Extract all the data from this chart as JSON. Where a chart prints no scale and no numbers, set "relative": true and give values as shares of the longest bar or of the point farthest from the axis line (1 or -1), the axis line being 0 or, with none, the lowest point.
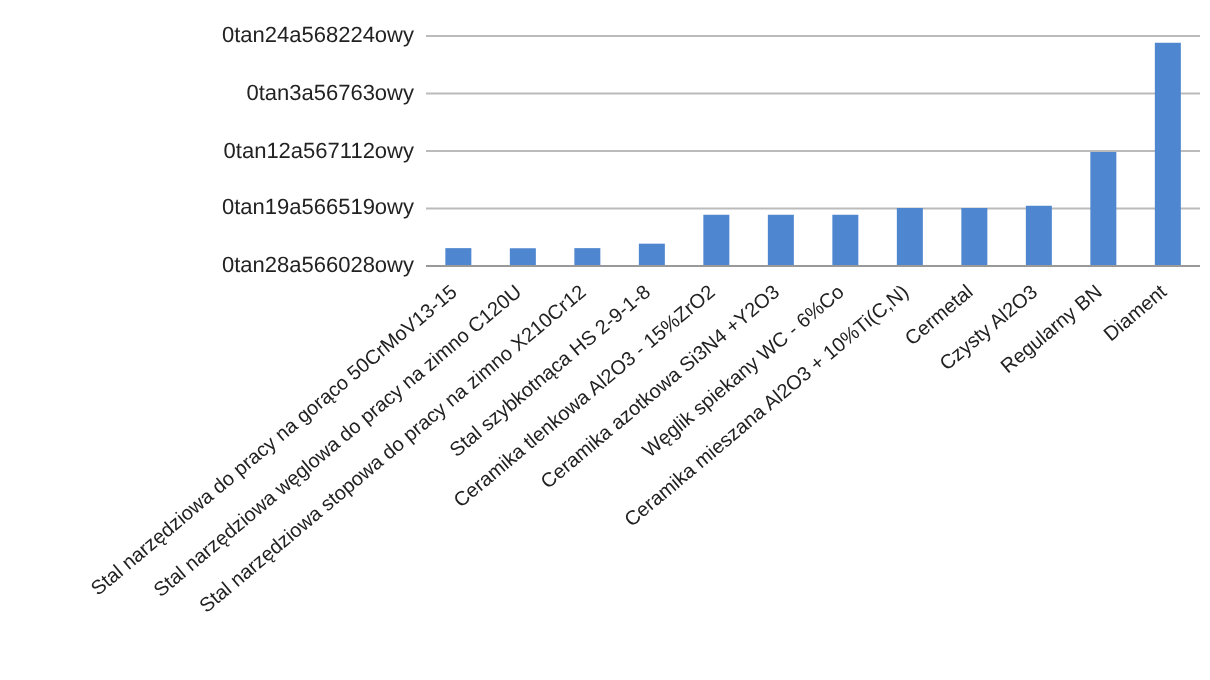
{
  "chart_data": {
    "type": "bar",
    "relative": true,
    "categories": [
      "Stal narzędziowa do pracy na gorąco 50CrMoV13-15",
      "Stal narzędziowa węglowa do pracy na zimno C120U",
      "Stal narzędziowa stopowa do pracy na zimno X210Cr12",
      "Stal szybkotnąca HS 2-9-1-8",
      "Ceramika tlenkowa Al2O3 - 15%ZrO2",
      "Ceramika azotkowa Si3N4 +Y2O3",
      "Węglik spiekany WC - 6%Co",
      "Ceramika mieszana Al2O3 + 10%Ti(C,N)",
      "Cermetal",
      "Czysty Al2O3",
      "Regularny BN",
      "Diament"
    ],
    "values": [
      0.08,
      0.08,
      0.08,
      0.1,
      0.23,
      0.23,
      0.23,
      0.26,
      0.26,
      0.27,
      0.51,
      1
    ],
    "color": "#4f86d0",
    "annotations": [
      "0tan24a568224owy",
      "0tan3a56763owy",
      "0tan12a567112owy",
      "0tan19a566519owy",
      "0tan28a566028owy"
    ],
    "grid": "y"
  }
}
